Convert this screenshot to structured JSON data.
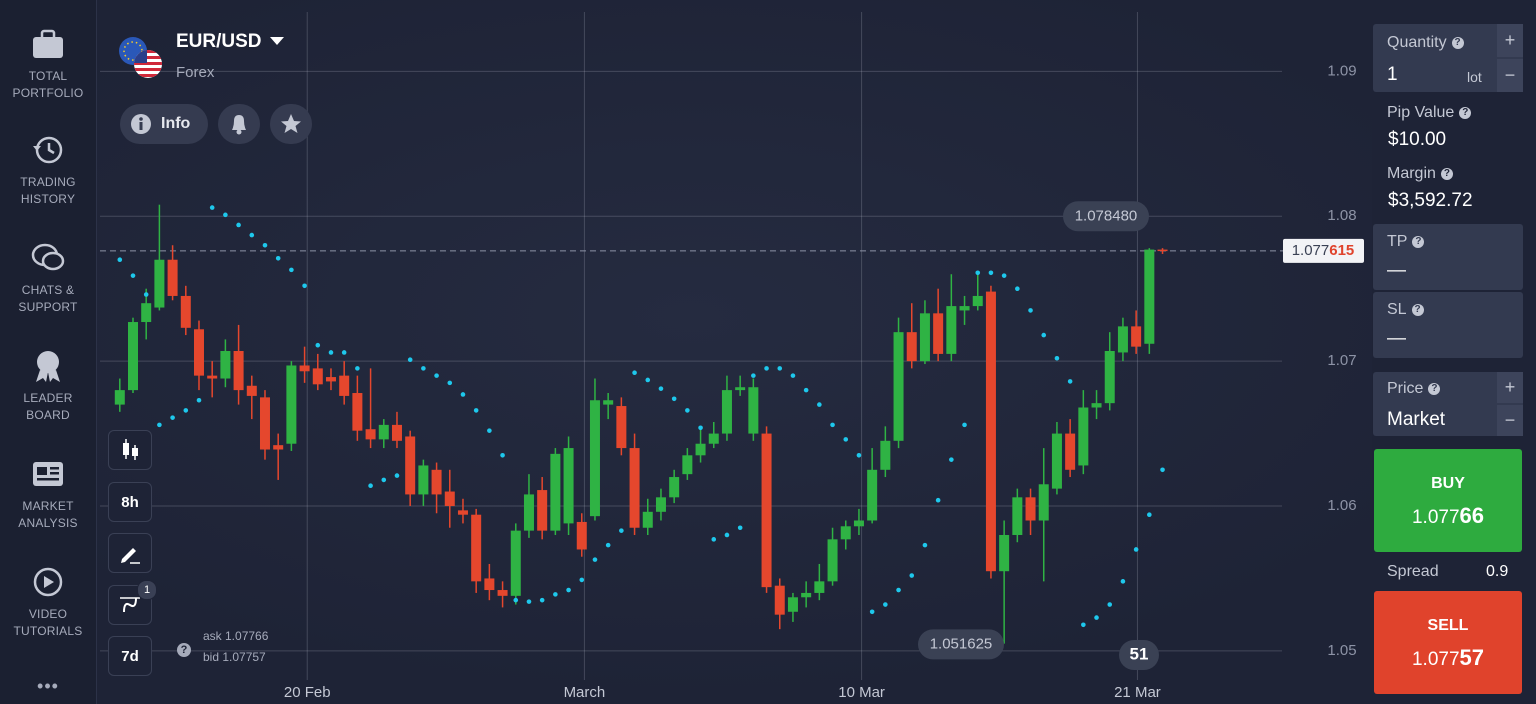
{
  "sidebar": {
    "items": [
      [
        "TOTAL",
        "PORTFOLIO"
      ],
      [
        "TRADING",
        "HISTORY"
      ],
      [
        "CHATS &",
        "SUPPORT"
      ],
      [
        "LEADER",
        "BOARD"
      ],
      [
        "MARKET",
        "ANALYSIS"
      ],
      [
        "VIDEO",
        "TUTORIALS"
      ]
    ],
    "more": "•••"
  },
  "header": {
    "symbol": "EUR/USD",
    "market": "Forex",
    "info": "Info"
  },
  "toolbar": {
    "period": "8h",
    "indicator_count": "1",
    "range": "7d",
    "ask": "ask 1.07766",
    "bid": "bid 1.07757",
    "help": "?"
  },
  "chart_data": {
    "type": "candlestick",
    "x": [
      0,
      1,
      2,
      3,
      4,
      5,
      6,
      7,
      8,
      9,
      10,
      11,
      12,
      13,
      14,
      15,
      16,
      17,
      18,
      19,
      20,
      21,
      22,
      23,
      24,
      25,
      26,
      27,
      28,
      29,
      30,
      31,
      32,
      33,
      34,
      35,
      36,
      37,
      38,
      39,
      40,
      41,
      42,
      43,
      44,
      45,
      46,
      47,
      48,
      49,
      50,
      51,
      52,
      53,
      54,
      55,
      56,
      57,
      58,
      59,
      60,
      61,
      62,
      63,
      64,
      65,
      66,
      67,
      68,
      69,
      70,
      71,
      72,
      73,
      74,
      75,
      76,
      77,
      78,
      79
    ],
    "open": [
      1.067,
      1.068,
      1.0727,
      1.0737,
      1.077,
      1.0745,
      1.0722,
      1.069,
      1.0688,
      1.0707,
      1.0683,
      1.0675,
      1.0642,
      1.0643,
      1.0697,
      1.0695,
      1.0689,
      1.069,
      1.0678,
      1.0653,
      1.0646,
      1.0656,
      1.0648,
      1.0608,
      1.0625,
      1.061,
      1.0597,
      1.0594,
      1.055,
      1.0542,
      1.0538,
      1.0583,
      1.0611,
      1.0583,
      1.0588,
      1.0589,
      1.0593,
      1.067,
      1.0669,
      1.064,
      1.0585,
      1.0596,
      1.0606,
      1.0622,
      1.0635,
      1.0643,
      1.065,
      1.068,
      1.065,
      1.065,
      1.0545,
      1.0527,
      1.0537,
      1.054,
      1.0548,
      1.0577,
      1.0586,
      1.059,
      1.0625,
      1.0645,
      1.072,
      1.07,
      1.0733,
      1.0705,
      1.0735,
      1.0738,
      1.0748,
      1.0555,
      1.058,
      1.0606,
      1.059,
      1.0612,
      1.065,
      1.0628,
      1.0668,
      1.0671,
      1.0706,
      1.0724,
      1.0712,
      1.0777
    ],
    "high": [
      1.0688,
      1.073,
      1.075,
      1.0808,
      1.078,
      1.0752,
      1.0728,
      1.07,
      1.0715,
      1.0725,
      1.069,
      1.068,
      1.065,
      1.07,
      1.071,
      1.0705,
      1.0695,
      1.07,
      1.069,
      1.0695,
      1.066,
      1.0665,
      1.0652,
      1.0632,
      1.063,
      1.0625,
      1.0605,
      1.0598,
      1.056,
      1.0548,
      1.0588,
      1.0622,
      1.062,
      1.064,
      1.0648,
      1.0595,
      1.0688,
      1.0678,
      1.0675,
      1.065,
      1.0605,
      1.0612,
      1.0625,
      1.064,
      1.0655,
      1.0658,
      1.069,
      1.069,
      1.0688,
      1.0655,
      1.055,
      1.054,
      1.0548,
      1.056,
      1.0585,
      1.059,
      1.0598,
      1.064,
      1.0655,
      1.073,
      1.074,
      1.0742,
      1.075,
      1.076,
      1.0745,
      1.076,
      1.0752,
      1.059,
      1.0612,
      1.0612,
      1.064,
      1.0658,
      1.066,
      1.068,
      1.068,
      1.072,
      1.073,
      1.0735,
      1.0778,
      1.0778
    ],
    "low": [
      1.0665,
      1.0678,
      1.0715,
      1.0735,
      1.0742,
      1.0718,
      1.068,
      1.0675,
      1.0682,
      1.067,
      1.066,
      1.0632,
      1.0618,
      1.0638,
      1.0685,
      1.068,
      1.068,
      1.067,
      1.0645,
      1.064,
      1.064,
      1.064,
      1.06,
      1.06,
      1.0595,
      1.0585,
      1.0588,
      1.054,
      1.0535,
      1.053,
      1.0532,
      1.0578,
      1.0577,
      1.058,
      1.058,
      1.0565,
      1.059,
      1.066,
      1.0635,
      1.058,
      1.058,
      1.059,
      1.0602,
      1.0618,
      1.063,
      1.064,
      1.0645,
      1.0676,
      1.0645,
      1.054,
      1.0515,
      1.052,
      1.053,
      1.0535,
      1.0545,
      1.057,
      1.058,
      1.0588,
      1.062,
      1.064,
      1.0695,
      1.0698,
      1.07,
      1.07,
      1.0725,
      1.0735,
      1.055,
      1.0505,
      1.0575,
      1.058,
      1.0548,
      1.0608,
      1.062,
      1.0622,
      1.066,
      1.0666,
      1.07,
      1.0705,
      1.0705,
      1.0774
    ],
    "close": [
      1.068,
      1.0727,
      1.074,
      1.077,
      1.0745,
      1.0723,
      1.069,
      1.0688,
      1.0707,
      1.068,
      1.0676,
      1.0639,
      1.0639,
      1.0697,
      1.0693,
      1.0684,
      1.0686,
      1.0676,
      1.0652,
      1.0646,
      1.0656,
      1.0645,
      1.0608,
      1.0628,
      1.0608,
      1.06,
      1.0594,
      1.0548,
      1.0542,
      1.0538,
      1.0583,
      1.0608,
      1.0583,
      1.0636,
      1.064,
      1.057,
      1.0673,
      1.0673,
      1.064,
      1.0585,
      1.0596,
      1.0606,
      1.062,
      1.0635,
      1.0643,
      1.065,
      1.068,
      1.0682,
      1.0682,
      1.0544,
      1.0525,
      1.0537,
      1.054,
      1.0548,
      1.0577,
      1.0586,
      1.059,
      1.0625,
      1.0645,
      1.072,
      1.07,
      1.0733,
      1.0705,
      1.0738,
      1.0738,
      1.0745,
      1.0555,
      1.058,
      1.0606,
      1.059,
      1.0615,
      1.065,
      1.0625,
      1.0668,
      1.0671,
      1.0707,
      1.0724,
      1.071,
      1.0777,
      1.0776
    ],
    "up_color": "#2fb344",
    "down_color": "#e5472d",
    "sar": {
      "color": "#1ec8ec",
      "values": [
        1.077,
        1.0759,
        1.0746,
        1.0656,
        1.0661,
        1.0666,
        1.0673,
        1.0806,
        1.0801,
        1.0794,
        1.0787,
        1.078,
        1.0771,
        1.0763,
        1.0752,
        1.0711,
        1.0706,
        1.0706,
        1.0695,
        1.0614,
        1.0618,
        1.0621,
        1.0701,
        1.0695,
        1.069,
        1.0685,
        1.0677,
        1.0666,
        1.0652,
        1.0635,
        1.0535,
        1.0534,
        1.0535,
        1.0539,
        1.0542,
        1.0549,
        1.0563,
        1.0573,
        1.0583,
        1.0692,
        1.0687,
        1.0681,
        1.0674,
        1.0666,
        1.0654,
        1.0577,
        1.058,
        1.0585,
        1.069,
        1.0695,
        1.0695,
        1.069,
        1.068,
        1.067,
        1.0656,
        1.0646,
        1.0635,
        1.0527,
        1.0532,
        1.0542,
        1.0552,
        1.0573,
        1.0604,
        1.0632,
        1.0656,
        1.0761,
        1.0761,
        1.0759,
        1.075,
        1.0735,
        1.0718,
        1.0702,
        1.0686,
        1.0518,
        1.0523,
        1.0532,
        1.0548,
        1.057,
        1.0594,
        1.0625
      ]
    },
    "xlim": [
      -1.5,
      87.9
    ],
    "ylim": [
      1.0473,
      1.0941
    ],
    "xticks": [
      {
        "value": 14.2,
        "label": "20 Feb"
      },
      {
        "value": 35.2,
        "label": "March"
      },
      {
        "value": 56.2,
        "label": "10 Mar"
      },
      {
        "value": 77.1,
        "label": "21 Mar"
      }
    ],
    "yticks": [
      1.09,
      1.08,
      1.07,
      1.06,
      1.05
    ],
    "grid": true,
    "current_price": {
      "value": 1.077615,
      "label_main": "1.077",
      "label_pips": "615"
    },
    "high_label": {
      "value": 1.07848,
      "label": "1.078480"
    },
    "low_label": {
      "value": 1.051625,
      "label": "1.051625"
    },
    "countdown": 51
  },
  "order_panel": {
    "help": "?",
    "plus": "+",
    "minus": "−",
    "quantity_label": "Quantity",
    "quantity": "1",
    "quantity_unit": "lot",
    "pip_value_label": "Pip Value",
    "pip_value": "$10.00",
    "margin_label": "Margin",
    "margin": "$3,592.72",
    "tp_label": "TP",
    "tp": "—",
    "sl_label": "SL",
    "sl": "—",
    "price_label": "Price",
    "price": "Market",
    "buy_label": "BUY",
    "buy_main": "1.077",
    "buy_pips": "66",
    "spread_label": "Spread",
    "spread": "0.9",
    "sell_label": "SELL",
    "sell_main": "1.077",
    "sell_pips": "57"
  }
}
